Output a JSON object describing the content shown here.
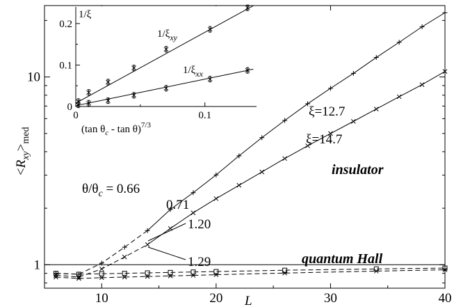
{
  "chart_data": [
    {
      "id": "main",
      "type": "scatter",
      "xlabel": "L",
      "ylabel": "<R_xy>_med",
      "xlim": [
        5,
        40
      ],
      "ylim": [
        0.75,
        24
      ],
      "yscale": "log",
      "xticks": [
        10,
        20,
        30,
        40
      ],
      "yticks": [
        1,
        10
      ],
      "ytick_labels": [
        "1",
        "10"
      ],
      "reference_line_y": 1,
      "series": [
        {
          "name": "θ/θc = 0.66",
          "marker": "plus",
          "x": [
            6,
            8,
            10,
            12,
            14,
            16,
            18,
            20,
            22,
            24,
            26,
            28,
            30,
            32,
            34,
            36,
            38,
            40
          ],
          "y": [
            0.9,
            0.89,
            1.02,
            1.24,
            1.52,
            1.97,
            2.42,
            3.01,
            3.8,
            4.75,
            5.87,
            7.2,
            8.7,
            10.45,
            12.7,
            15.3,
            18.5,
            22.0
          ],
          "dashed_until_index": 4,
          "curve_label": "ξ=12.7"
        },
        {
          "name": "0.71",
          "marker": "x",
          "x": [
            6,
            8,
            10,
            12,
            14,
            16,
            18,
            20,
            22,
            24,
            26,
            28,
            30,
            32,
            34,
            36,
            38,
            40
          ],
          "y": [
            0.88,
            0.86,
            0.95,
            1.1,
            1.28,
            1.56,
            1.89,
            2.25,
            2.65,
            3.12,
            3.68,
            4.3,
            5.0,
            5.8,
            6.75,
            7.85,
            9.1,
            10.7
          ],
          "dashed_until_index": 4,
          "curve_label": "ξ=14.7"
        },
        {
          "name": "1.20",
          "marker": "square",
          "x": [
            6,
            8,
            10,
            12,
            14,
            16,
            18,
            20,
            26,
            34,
            40
          ],
          "y": [
            0.9,
            0.89,
            0.895,
            0.9,
            0.905,
            0.91,
            0.915,
            0.92,
            0.935,
            0.95,
            0.96
          ]
        },
        {
          "name": "1.29",
          "marker": "star",
          "x": [
            6,
            8,
            10,
            12,
            14,
            16,
            18,
            20,
            26,
            34,
            40
          ],
          "y": [
            0.86,
            0.845,
            0.853,
            0.86,
            0.866,
            0.872,
            0.878,
            0.885,
            0.903,
            0.925,
            0.94
          ]
        }
      ],
      "text_annotations": [
        "ξ=12.7",
        "ξ=14.7",
        "insulator",
        "quantum Hall",
        "θ/θc = 0.66",
        "0.71",
        "1.20",
        "1.29"
      ]
    },
    {
      "id": "inset",
      "type": "scatter",
      "xlabel": "(tan θc - tan θ)^(7/3)",
      "ylabel": "1/ξ",
      "xlim": [
        0,
        0.14
      ],
      "ylim": [
        0,
        0.24
      ],
      "xticks": [
        0,
        0.1
      ],
      "xtick_labels": [
        "0",
        "0.1"
      ],
      "yticks": [
        0,
        0.1,
        0.2
      ],
      "ytick_labels": [
        "0",
        "0.1",
        "0.2"
      ],
      "series": [
        {
          "name": "1/ξxy",
          "marker": "x-err",
          "x": [
            0.002,
            0.01,
            0.025,
            0.045,
            0.07,
            0.104,
            0.133
          ],
          "y": [
            0.012,
            0.034,
            0.059,
            0.093,
            0.138,
            0.186,
            0.238
          ],
          "fit": {
            "slope": 1.71,
            "intercept": 0.008
          }
        },
        {
          "name": "1/ξxx",
          "marker": "x-err",
          "x": [
            0.002,
            0.01,
            0.025,
            0.045,
            0.07,
            0.104,
            0.133
          ],
          "y": [
            0.004,
            0.008,
            0.014,
            0.027,
            0.044,
            0.066,
            0.087
          ],
          "fit": {
            "slope": 0.64,
            "intercept": 0.002
          }
        }
      ]
    }
  ]
}
